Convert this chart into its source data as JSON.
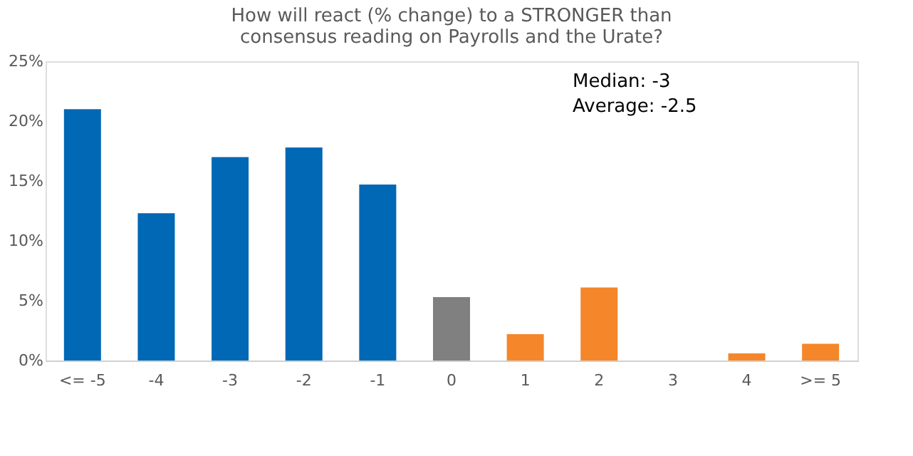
{
  "chart_data": {
    "type": "bar",
    "title": "How will react (% change) to a STRONGER than consensus reading on Payrolls and the Urate?",
    "categories": [
      "<= -5",
      "-4",
      "-3",
      "-2",
      "-1",
      "0",
      "1",
      "2",
      "3",
      "4",
      ">= 5"
    ],
    "values": [
      21.0,
      12.3,
      17.0,
      17.8,
      14.7,
      5.3,
      2.2,
      6.1,
      0,
      0.6,
      1.4
    ],
    "colors": [
      "#0068b5",
      "#0068b5",
      "#0068b5",
      "#0068b5",
      "#0068b5",
      "#808080",
      "#f5862a",
      "#f5862a",
      "#f5862a",
      "#f5862a",
      "#f5862a"
    ],
    "ylim": [
      0,
      25
    ],
    "yticks": [
      {
        "value": 0,
        "label": "0%"
      },
      {
        "value": 5,
        "label": "5%"
      },
      {
        "value": 10,
        "label": "10%"
      },
      {
        "value": 15,
        "label": "15%"
      },
      {
        "value": 20,
        "label": "20%"
      },
      {
        "value": 25,
        "label": "25%"
      }
    ],
    "annotations": [
      "Median:   -3",
      "Average:  -2.5"
    ],
    "grid": false
  }
}
